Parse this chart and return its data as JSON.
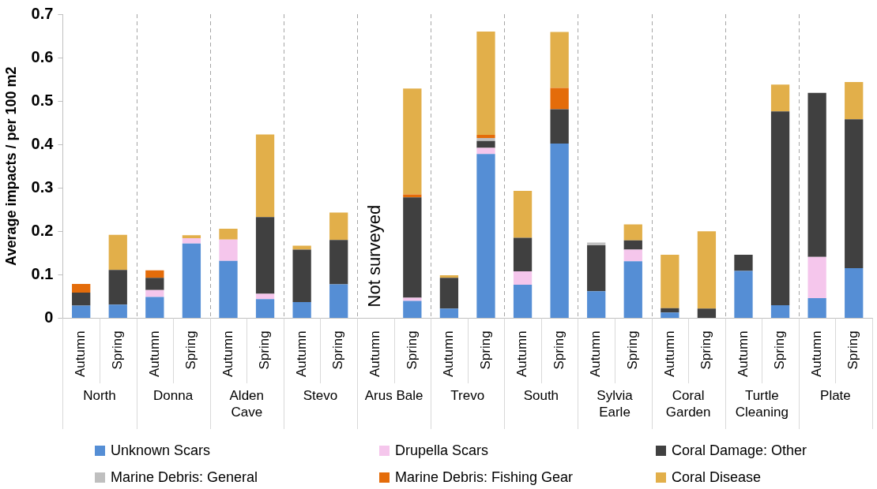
{
  "chart_data": {
    "type": "bar",
    "stacked": true,
    "ylabel": "Average impacts / per 100 m2",
    "ylim": [
      0,
      0.7
    ],
    "yticks": [
      0,
      0.1,
      0.2,
      0.3,
      0.4,
      0.5,
      0.6,
      0.7
    ],
    "legend": "bottom",
    "categories": [
      "Autumn",
      "Spring",
      "Autumn",
      "Spring",
      "Autumn",
      "Spring",
      "Autumn",
      "Spring",
      "Autumn",
      "Spring",
      "Autumn",
      "Spring",
      "Autumn",
      "Spring",
      "Autumn",
      "Spring",
      "Autumn",
      "Spring",
      "Autumn",
      "Spring",
      "Autumn",
      "Spring"
    ],
    "annotations": [
      "North",
      "Donna",
      "Alden Cave",
      "Stevo",
      "Arus Bale",
      "Trevo",
      "South",
      "Sylvia Earle",
      "Coral Garden",
      "Turtle Cleaning",
      "Plate",
      "Not surveyed"
    ],
    "series": [
      {
        "name": "Unknown Scars",
        "color": "#558ed5",
        "values": [
          0.029,
          0.031,
          0.049,
          0.172,
          0.132,
          0.044,
          0.037,
          0.078,
          null,
          0.04,
          0.022,
          0.378,
          0.077,
          0.402,
          0.062,
          0.131,
          0.013,
          null,
          0.109,
          0.03,
          0.046,
          0.115
        ]
      },
      {
        "name": "Drupella Scars",
        "color": "#f5c6ec",
        "values": [
          null,
          null,
          0.016,
          0.012,
          0.049,
          0.012,
          null,
          null,
          null,
          0.007,
          null,
          0.014,
          0.031,
          null,
          null,
          0.027,
          null,
          null,
          null,
          null,
          0.095,
          null
        ]
      },
      {
        "name": "Coral Damage: Other",
        "color": "#404040",
        "values": [
          0.03,
          0.08,
          0.028,
          null,
          null,
          0.177,
          0.121,
          0.102,
          null,
          0.231,
          0.071,
          0.016,
          0.077,
          0.079,
          0.106,
          0.021,
          0.01,
          0.022,
          0.037,
          0.446,
          0.378,
          0.343
        ]
      },
      {
        "name": "Marine Debris: General",
        "color": "#bfbfbf",
        "values": [
          null,
          null,
          null,
          null,
          null,
          null,
          null,
          null,
          null,
          null,
          null,
          0.007,
          null,
          null,
          0.006,
          null,
          null,
          null,
          null,
          null,
          null,
          null
        ]
      },
      {
        "name": "Marine Debris: Fishing Gear",
        "color": "#e46c0a",
        "values": [
          0.02,
          null,
          0.017,
          null,
          null,
          null,
          null,
          null,
          null,
          0.007,
          null,
          0.007,
          null,
          0.049,
          null,
          null,
          null,
          null,
          null,
          null,
          null,
          null
        ]
      },
      {
        "name": "Coral Disease",
        "color": "#e2af4a",
        "values": [
          null,
          0.081,
          null,
          0.007,
          0.025,
          0.19,
          0.009,
          0.063,
          null,
          0.244,
          0.006,
          0.238,
          0.108,
          0.129,
          null,
          0.037,
          0.123,
          0.178,
          null,
          0.062,
          null,
          0.086
        ]
      }
    ]
  }
}
